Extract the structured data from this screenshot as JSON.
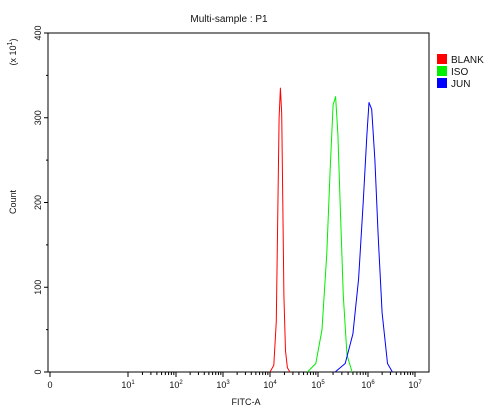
{
  "chart_data": {
    "type": "line",
    "title": "Multi-sample : P1",
    "xlabel": "FITC-A",
    "ylabel": "Count",
    "y_multiplier_label": "(x 10",
    "y_multiplier_exp": "1",
    "y_multiplier_close": ")",
    "x_scale": "log",
    "ylim": [
      0,
      400
    ],
    "y_ticks": [
      "0",
      "100",
      "200",
      "300",
      "400"
    ],
    "x_ticks": [
      {
        "base": "0",
        "exp": ""
      },
      {
        "base": "10",
        "exp": "1"
      },
      {
        "base": "10",
        "exp": "2"
      },
      {
        "base": "10",
        "exp": "3"
      },
      {
        "base": "10",
        "exp": "4"
      },
      {
        "base": "10",
        "exp": "5"
      },
      {
        "base": "10",
        "exp": "6"
      },
      {
        "base": "10",
        "exp": "7"
      }
    ],
    "legend_position": "top-right",
    "series": [
      {
        "name": "BLANK",
        "color": "#ff0000",
        "x": [
          10000,
          12000,
          13500,
          14500,
          15500,
          16500,
          17500,
          18500,
          19500,
          21000,
          23000,
          26000
        ],
        "y": [
          0,
          8,
          60,
          180,
          300,
          335,
          305,
          200,
          90,
          25,
          5,
          0
        ]
      },
      {
        "name": "ISO",
        "color": "#00ee00",
        "x": [
          60000,
          90000,
          120000,
          150000,
          175000,
          200000,
          225000,
          250000,
          280000,
          320000,
          380000,
          480000
        ],
        "y": [
          0,
          10,
          50,
          140,
          240,
          315,
          325,
          280,
          190,
          90,
          20,
          0
        ]
      },
      {
        "name": "JUN",
        "color": "#0000ff",
        "x": [
          220000,
          350000,
          500000,
          650000,
          800000,
          950000,
          1050000,
          1200000,
          1400000,
          1650000,
          2000000,
          2600000,
          3300000
        ],
        "y": [
          0,
          10,
          45,
          110,
          200,
          280,
          318,
          310,
          250,
          160,
          70,
          10,
          0
        ]
      }
    ]
  }
}
